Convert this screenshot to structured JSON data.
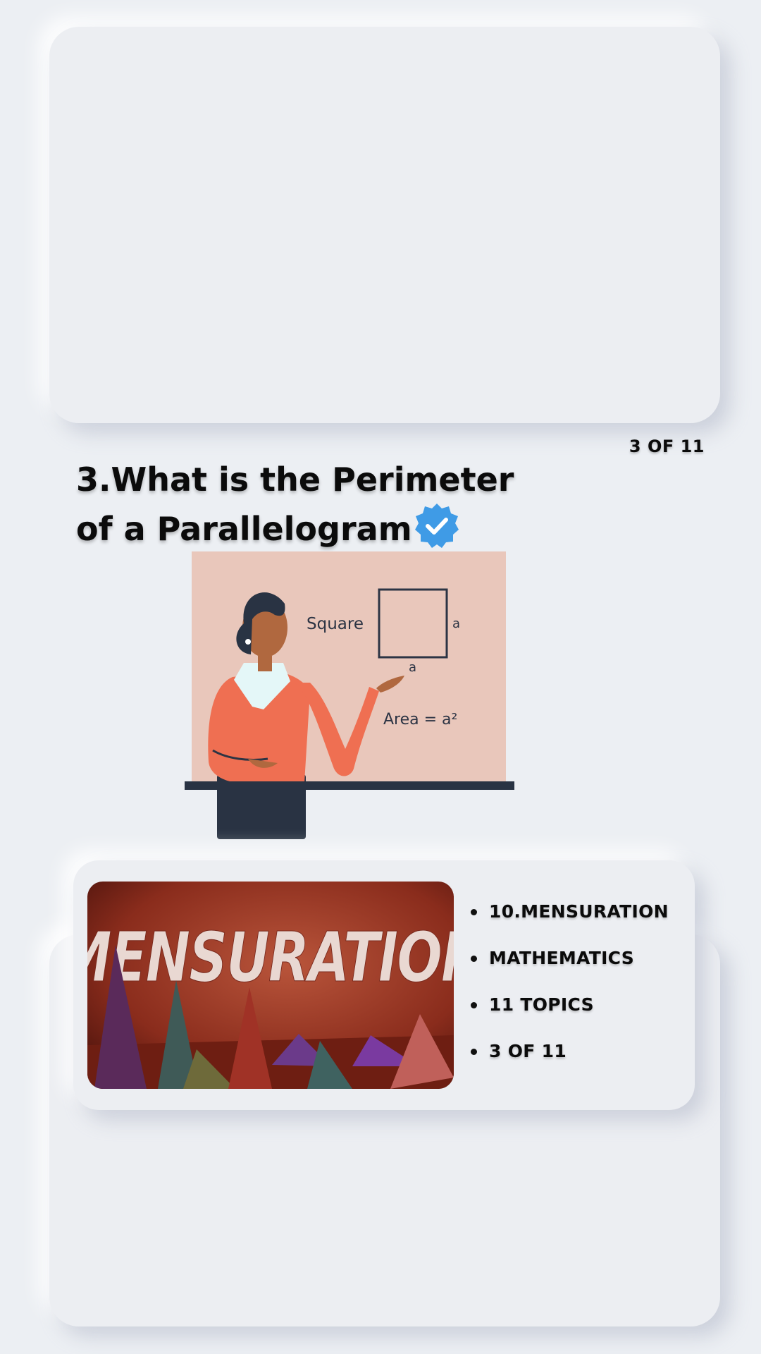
{
  "progress": "3 OF 11",
  "question": {
    "title": "3.What is the Perimeter of a Parallelogram",
    "verified_icon": "verified-badge-icon",
    "badge_color": "#3f9be6"
  },
  "illustration": {
    "label_shape": "Square",
    "side_right": "a",
    "side_bottom": "a",
    "formula": "Area = a²"
  },
  "topic_card": {
    "thumbnail_text": "MENSURATION",
    "items": [
      "10.MENSURATION",
      "MATHEMATICS",
      "11 TOPICS",
      "3 OF 11"
    ]
  }
}
